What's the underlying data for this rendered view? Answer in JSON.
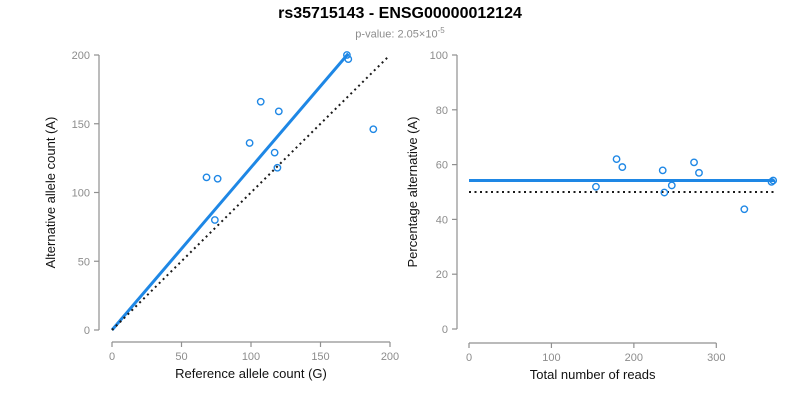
{
  "figure": {
    "title": "rs35715143 - ENSG00000012124",
    "subtitle_base": "p-value: 2.05×10",
    "subtitle_exponent": "-5"
  },
  "colors": {
    "accent_blue": "#1E87E5",
    "axis_gray": "#909090",
    "tick_label_gray": "#8C8C8C",
    "axis_title_black": "#111111",
    "dotted_line_black": "#1A1A1A"
  },
  "chart_data": [
    {
      "type": "scatter",
      "title": "",
      "xlabel": "Reference allele count (G)",
      "ylabel": "Alternative allele count (A)",
      "xlim": [
        0,
        200
      ],
      "ylim": [
        0,
        200
      ],
      "xticks": [
        0,
        50,
        100,
        150,
        200
      ],
      "yticks": [
        0,
        50,
        100,
        150,
        200
      ],
      "grid": false,
      "points": {
        "x": [
          74,
          68,
          76,
          99,
          117,
          119,
          107,
          120,
          188,
          169,
          170
        ],
        "y": [
          80,
          111,
          110,
          136,
          129,
          118,
          166,
          159,
          146,
          200,
          197
        ]
      },
      "lines": [
        {
          "name": "fit-line",
          "x1": 0,
          "y1": 0,
          "x2": 170,
          "y2": 201,
          "dotted": false,
          "color": "accent"
        },
        {
          "name": "identity-line",
          "x1": 0,
          "y1": 0,
          "x2": 199,
          "y2": 199,
          "dotted": true,
          "color": "black"
        }
      ]
    },
    {
      "type": "scatter",
      "title": "",
      "xlabel": "Total number of reads",
      "ylabel": "Percentage alternative (A)",
      "xlim": [
        0,
        370
      ],
      "ylim": [
        0,
        100
      ],
      "xticks": [
        0,
        100,
        200,
        300
      ],
      "yticks": [
        0,
        20,
        40,
        60,
        80,
        100
      ],
      "grid": false,
      "points": {
        "x": [
          154,
          179,
          186,
          235,
          246,
          237,
          273,
          279,
          334,
          369,
          367
        ],
        "y": [
          51.9,
          62.0,
          59.1,
          57.9,
          52.4,
          49.8,
          60.8,
          57.0,
          43.7,
          54.2,
          53.7
        ]
      },
      "lines": [
        {
          "name": "mean-line",
          "x1": 0,
          "y1": 54.2,
          "x2": 370,
          "y2": 54.2,
          "dotted": false,
          "color": "accent"
        },
        {
          "name": "null-line",
          "x1": 0,
          "y1": 50,
          "x2": 370,
          "y2": 50,
          "dotted": true,
          "color": "black"
        }
      ]
    }
  ]
}
